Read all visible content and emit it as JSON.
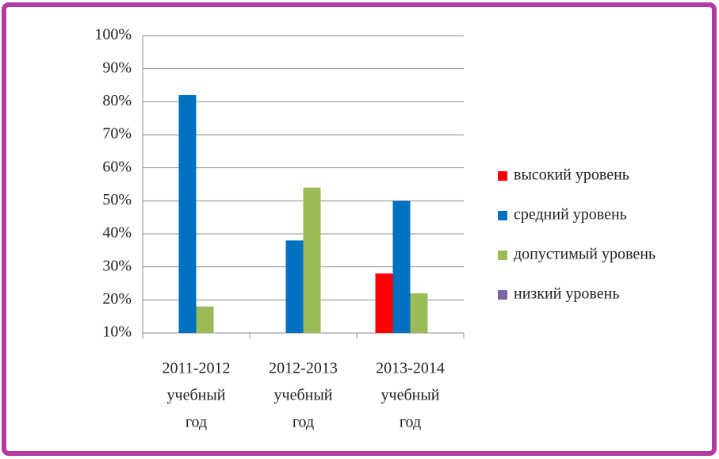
{
  "chart_data": {
    "type": "bar",
    "categories": [
      [
        "2011-2012",
        "учебный",
        "год"
      ],
      [
        "2012-2013",
        "учебный",
        "год"
      ],
      [
        "2013-2014",
        "учебный",
        "год"
      ]
    ],
    "series": [
      {
        "name": "высокий уровень",
        "color": "#ff0000",
        "values": [
          null,
          null,
          28
        ]
      },
      {
        "name": "средний уровень",
        "color": "#0070c0",
        "values": [
          82,
          38,
          50
        ]
      },
      {
        "name": "допустимый уровень",
        "color": "#9bbb59",
        "values": [
          18,
          54,
          22
        ]
      },
      {
        "name": "низкий уровень",
        "color": "#8064a2",
        "values": [
          null,
          null,
          null
        ]
      }
    ],
    "ylim": [
      10,
      100
    ],
    "yticks": [
      {
        "value": 10,
        "label": "10%"
      },
      {
        "value": 20,
        "label": "20%"
      },
      {
        "value": 30,
        "label": "30%"
      },
      {
        "value": 40,
        "label": "40%"
      },
      {
        "value": 50,
        "label": "50%"
      },
      {
        "value": 60,
        "label": "60%"
      },
      {
        "value": 70,
        "label": "70%"
      },
      {
        "value": 80,
        "label": "80%"
      },
      {
        "value": 90,
        "label": "90%"
      },
      {
        "value": 100,
        "label": "100%"
      }
    ],
    "grid": true,
    "legend": "right"
  }
}
